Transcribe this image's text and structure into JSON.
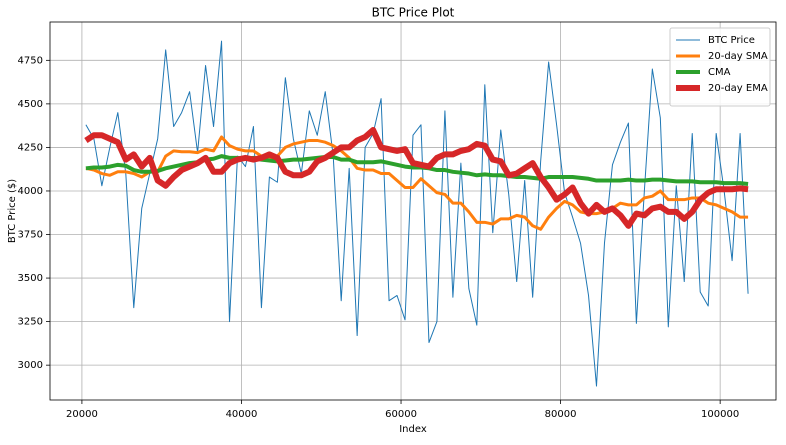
{
  "chart_data": {
    "type": "line",
    "title": "BTC Price Plot",
    "x_label": "Index",
    "y_label": "BTC Price ($)",
    "x": [
      20500,
      21500,
      22500,
      23500,
      24500,
      25500,
      26500,
      27500,
      28500,
      29500,
      30500,
      31500,
      32500,
      33500,
      34500,
      35500,
      36500,
      37500,
      38500,
      39500,
      40500,
      41500,
      42500,
      43500,
      44500,
      45500,
      46500,
      47500,
      48500,
      49500,
      50500,
      51500,
      52500,
      53500,
      54500,
      55500,
      56500,
      57500,
      58500,
      59500,
      60500,
      61500,
      62500,
      63500,
      64500,
      65500,
      66500,
      67500,
      68500,
      69500,
      70500,
      71500,
      72500,
      73500,
      74500,
      75500,
      76500,
      77500,
      78500,
      79500,
      80500,
      81500,
      82500,
      83500,
      84500,
      85500,
      86500,
      87500,
      88500,
      89500,
      90500,
      91500,
      92500,
      93500,
      94500,
      95500,
      96500,
      97500,
      98500,
      99500,
      100500,
      101500,
      102500,
      103500
    ],
    "series": [
      {
        "name": "BTC Price",
        "color": "#1f77b4",
        "width": 1,
        "values": [
          4380,
          4300,
          4030,
          4250,
          4450,
          4100,
          3330,
          3900,
          4100,
          4300,
          4810,
          4370,
          4450,
          4570,
          4220,
          4720,
          4370,
          4860,
          3250,
          4200,
          4140,
          4370,
          3330,
          4080,
          4050,
          4650,
          4300,
          4100,
          4460,
          4320,
          4570,
          4200,
          3370,
          4130,
          3170,
          4250,
          4330,
          4530,
          3370,
          3400,
          3260,
          4320,
          4380,
          3130,
          3250,
          4460,
          3390,
          4160,
          3440,
          3230,
          4610,
          3760,
          4350,
          3980,
          3480,
          4060,
          3390,
          4170,
          4740,
          4380,
          3990,
          3850,
          3700,
          3400,
          2880,
          3700,
          4150,
          4280,
          4390,
          3240,
          4000,
          4700,
          4420,
          3220,
          4030,
          3480,
          4330,
          3420,
          3340,
          4330,
          4000,
          3600,
          4330,
          3410
        ]
      },
      {
        "name": "20-day SMA",
        "color": "#ff7f0e",
        "width": 3,
        "values": [
          4130,
          4120,
          4100,
          4090,
          4110,
          4110,
          4100,
          4080,
          4110,
          4110,
          4200,
          4230,
          4225,
          4225,
          4220,
          4240,
          4230,
          4310,
          4260,
          4240,
          4230,
          4230,
          4200,
          4190,
          4200,
          4250,
          4270,
          4280,
          4290,
          4290,
          4280,
          4260,
          4230,
          4190,
          4130,
          4120,
          4120,
          4100,
          4100,
          4060,
          4020,
          4020,
          4070,
          4030,
          3990,
          3980,
          3930,
          3930,
          3880,
          3820,
          3820,
          3810,
          3840,
          3840,
          3860,
          3850,
          3800,
          3780,
          3850,
          3900,
          3940,
          3920,
          3880,
          3870,
          3870,
          3880,
          3900,
          3930,
          3920,
          3920,
          3960,
          3970,
          4000,
          3950,
          3950,
          3950,
          3960,
          3960,
          3930,
          3920,
          3900,
          3880,
          3850,
          3850
        ]
      },
      {
        "name": "CMA",
        "color": "#2ca02c",
        "width": 4,
        "values": [
          4130,
          4135,
          4135,
          4140,
          4150,
          4145,
          4120,
          4110,
          4110,
          4115,
          4130,
          4140,
          4150,
          4160,
          4165,
          4180,
          4185,
          4200,
          4190,
          4190,
          4185,
          4190,
          4180,
          4175,
          4170,
          4175,
          4180,
          4180,
          4185,
          4190,
          4195,
          4195,
          4180,
          4180,
          4165,
          4165,
          4165,
          4170,
          4160,
          4150,
          4140,
          4135,
          4135,
          4130,
          4120,
          4120,
          4110,
          4105,
          4100,
          4090,
          4095,
          4090,
          4090,
          4085,
          4080,
          4080,
          4075,
          4070,
          4080,
          4080,
          4080,
          4080,
          4075,
          4070,
          4060,
          4060,
          4060,
          4060,
          4065,
          4060,
          4060,
          4065,
          4065,
          4060,
          4055,
          4055,
          4055,
          4050,
          4050,
          4050,
          4045,
          4045,
          4045,
          4040
        ]
      },
      {
        "name": "20-day EMA",
        "color": "#d62728",
        "width": 6,
        "values": [
          4290,
          4320,
          4320,
          4300,
          4280,
          4180,
          4210,
          4140,
          4190,
          4060,
          4030,
          4080,
          4120,
          4140,
          4160,
          4190,
          4110,
          4110,
          4160,
          4180,
          4190,
          4180,
          4190,
          4210,
          4190,
          4110,
          4090,
          4090,
          4110,
          4170,
          4190,
          4220,
          4250,
          4250,
          4290,
          4310,
          4350,
          4250,
          4240,
          4230,
          4240,
          4160,
          4150,
          4140,
          4190,
          4210,
          4210,
          4230,
          4240,
          4270,
          4260,
          4180,
          4170,
          4090,
          4100,
          4130,
          4160,
          4080,
          4020,
          3950,
          3980,
          4020,
          3930,
          3870,
          3920,
          3880,
          3900,
          3860,
          3800,
          3870,
          3860,
          3900,
          3910,
          3880,
          3880,
          3840,
          3880,
          3950,
          3990,
          4010,
          4010,
          4010,
          4015,
          4010
        ]
      }
    ],
    "xlim": [
      16000,
      107000
    ],
    "ylim": [
      2800,
      4970
    ],
    "xticks": [
      20000,
      40000,
      60000,
      80000,
      100000
    ],
    "yticks": [
      3000,
      3250,
      3500,
      3750,
      4000,
      4250,
      4500,
      4750
    ],
    "grid": true,
    "legend": "upper right"
  }
}
